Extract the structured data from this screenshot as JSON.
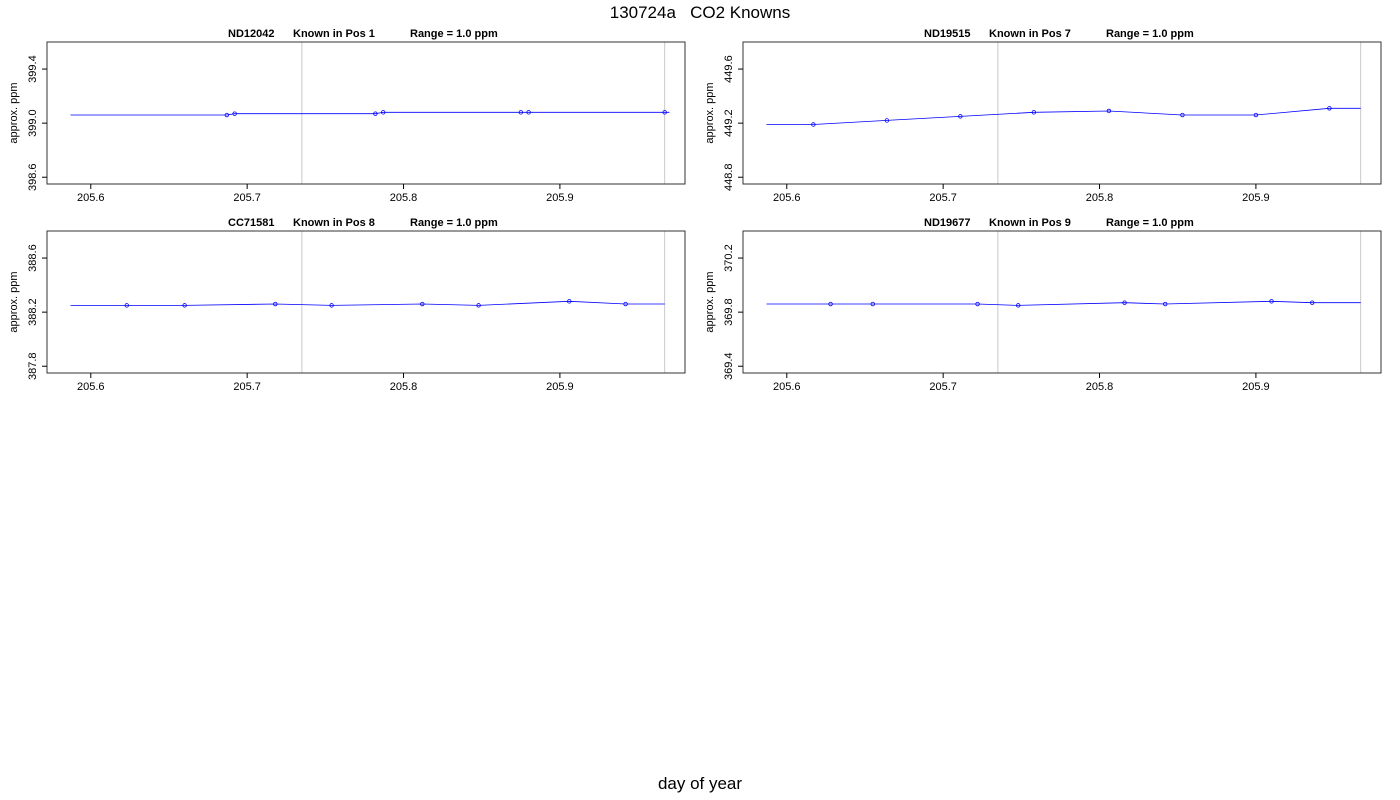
{
  "title": "130724a   CO2 Knowns",
  "xlabel": "day of year",
  "chart_data": [
    {
      "type": "line",
      "panel_title": {
        "id": "ND12042",
        "position": "Known in Pos 1",
        "range": "Range = 1.0 ppm"
      },
      "ylabel": "approx. ppm",
      "xlim": [
        205.572,
        205.98
      ],
      "ylim": [
        398.55,
        399.6
      ],
      "xticks": [
        "205.6",
        "205.7",
        "205.8",
        "205.9"
      ],
      "yticks": [
        "398.6",
        "399.0",
        "399.4"
      ],
      "vlines": [
        205.735,
        205.967
      ],
      "series": [
        {
          "x": [
            205.587,
            205.597,
            205.687,
            205.692,
            205.782,
            205.787,
            205.875,
            205.88,
            205.97,
            205.967
          ],
          "y": [
            399.06,
            399.06,
            399.06,
            399.07,
            399.07,
            399.08,
            399.08,
            399.08,
            399.08,
            399.08
          ],
          "points": [
            0,
            0,
            1,
            1,
            1,
            1,
            1,
            1,
            0,
            1
          ]
        }
      ]
    },
    {
      "type": "line",
      "panel_title": {
        "id": "ND19515",
        "position": "Known in Pos 7",
        "range": "Range = 1.0 ppm"
      },
      "ylabel": "approx. ppm",
      "xlim": [
        205.572,
        205.98
      ],
      "ylim": [
        448.75,
        449.8
      ],
      "xticks": [
        "205.6",
        "205.7",
        "205.8",
        "205.9"
      ],
      "yticks": [
        "448.8",
        "449.2",
        "449.6"
      ],
      "vlines": [
        205.735,
        205.967
      ],
      "series": [
        {
          "x": [
            205.587,
            205.617,
            205.664,
            205.711,
            205.758,
            205.806,
            205.853,
            205.9,
            205.947,
            205.967
          ],
          "y": [
            449.19,
            449.19,
            449.22,
            449.25,
            449.28,
            449.29,
            449.26,
            449.26,
            449.31,
            449.31
          ],
          "points": [
            0,
            1,
            1,
            1,
            1,
            1,
            1,
            1,
            1,
            0
          ]
        }
      ]
    },
    {
      "type": "line",
      "panel_title": {
        "id": "CC71581",
        "position": "Known in Pos 8",
        "range": "Range = 1.0 ppm"
      },
      "ylabel": "approx. ppm",
      "xlim": [
        205.572,
        205.98
      ],
      "ylim": [
        387.75,
        388.8
      ],
      "xticks": [
        "205.6",
        "205.7",
        "205.8",
        "205.9"
      ],
      "yticks": [
        "387.8",
        "388.2",
        "388.6"
      ],
      "vlines": [
        205.735,
        205.967
      ],
      "series": [
        {
          "x": [
            205.587,
            205.623,
            205.66,
            205.718,
            205.754,
            205.812,
            205.848,
            205.906,
            205.942,
            205.967
          ],
          "y": [
            388.25,
            388.25,
            388.25,
            388.26,
            388.25,
            388.26,
            388.25,
            388.28,
            388.26,
            388.26
          ],
          "points": [
            0,
            1,
            1,
            1,
            1,
            1,
            1,
            1,
            1,
            0
          ]
        }
      ]
    },
    {
      "type": "line",
      "panel_title": {
        "id": "ND19677",
        "position": "Known in Pos 9",
        "range": "Range = 1.0 ppm"
      },
      "ylabel": "approx. ppm",
      "xlim": [
        205.572,
        205.98
      ],
      "ylim": [
        369.35,
        370.4
      ],
      "xticks": [
        "205.6",
        "205.7",
        "205.8",
        "205.9"
      ],
      "yticks": [
        "369.4",
        "369.8",
        "370.2"
      ],
      "vlines": [
        205.735,
        205.967
      ],
      "series": [
        {
          "x": [
            205.587,
            205.628,
            205.655,
            205.722,
            205.748,
            205.816,
            205.842,
            205.91,
            205.936,
            205.967
          ],
          "y": [
            369.86,
            369.86,
            369.86,
            369.86,
            369.85,
            369.87,
            369.86,
            369.88,
            369.87,
            369.87
          ],
          "points": [
            0,
            1,
            1,
            1,
            1,
            1,
            1,
            1,
            1,
            0
          ]
        }
      ]
    }
  ]
}
